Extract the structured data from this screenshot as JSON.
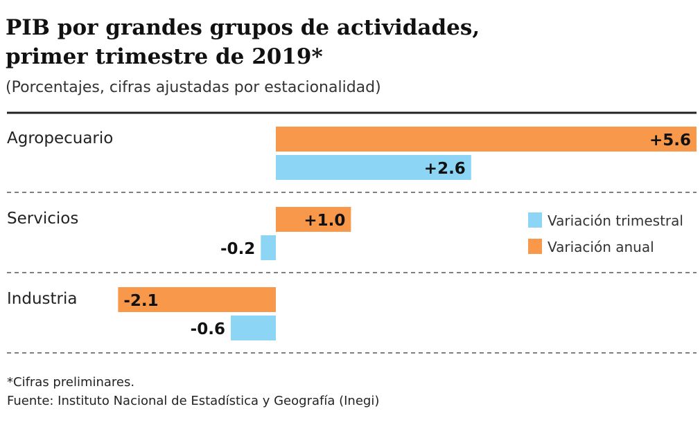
{
  "chart_data": {
    "type": "bar",
    "orientation": "horizontal",
    "title": "PIB por grandes grupos de actividades, primer trimestre de 2019*",
    "title_lines": [
      "PIB por grandes grupos de actividades,",
      "primer trimestre de 2019*"
    ],
    "subtitle": "(Porcentajes, cifras ajustadas por estacionalidad)",
    "categories": [
      "Agropecuario",
      "Servicios",
      "Industria"
    ],
    "series": [
      {
        "name": "Variación anual",
        "color": "#f7984a",
        "values": [
          5.6,
          1.0,
          -2.1
        ],
        "labels": [
          "+5.6",
          "+1.0",
          "-2.1"
        ]
      },
      {
        "name": "Variación trimestral",
        "color": "#8dd5f5",
        "values": [
          2.6,
          -0.2,
          -0.6
        ],
        "labels": [
          "+2.6",
          "-0.2",
          "-0.6"
        ]
      }
    ],
    "legend": {
      "placement": "right",
      "items": [
        "Variación trimestral",
        "Variación anual"
      ]
    },
    "xlim": [
      -3.7,
      5.6
    ],
    "grid": false,
    "footnotes": [
      "*Cifras preliminares.",
      "Fuente: Instituto Nacional de Estadística y Geografía (Inegi)"
    ]
  }
}
